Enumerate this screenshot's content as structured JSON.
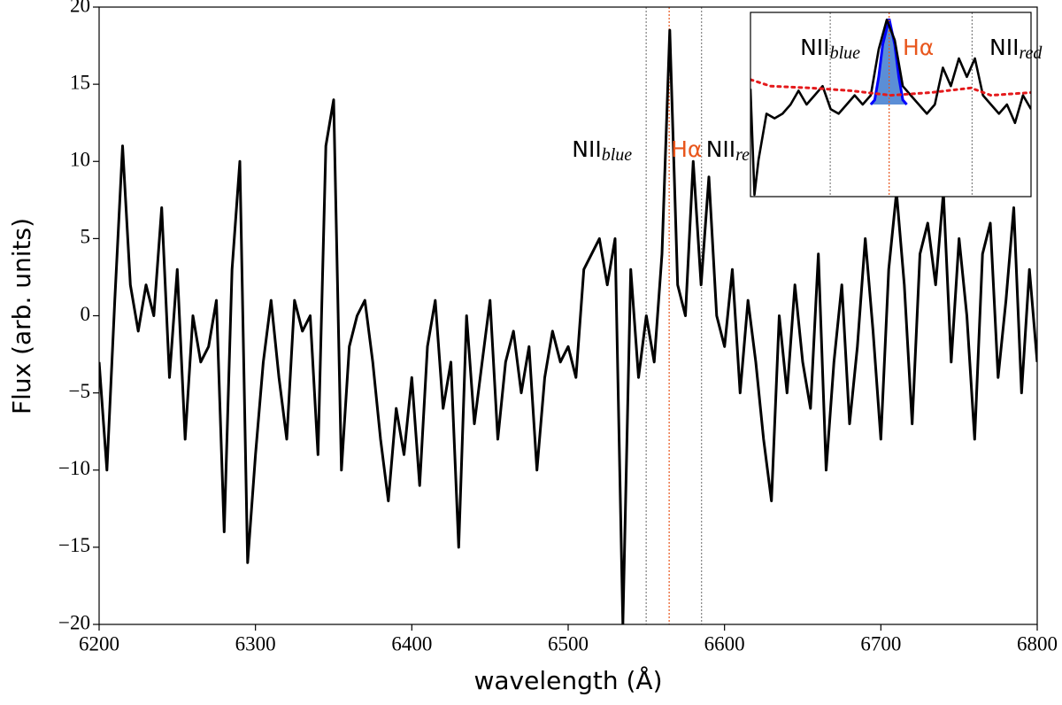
{
  "chart_data": {
    "type": "line",
    "xlabel": "wavelength (Å)",
    "ylabel": "Flux (arb. units)",
    "xlim": [
      6200,
      6800
    ],
    "xticks": [
      6200,
      6300,
      6400,
      6500,
      6600,
      6700,
      6800
    ],
    "ylim": [
      -20,
      20
    ],
    "yticks": [
      {
        "value": -20,
        "label": "−20"
      },
      {
        "value": -15,
        "label": "−15"
      },
      {
        "value": -10,
        "label": "−10"
      },
      {
        "value": -5,
        "label": "−5"
      },
      0,
      5,
      10,
      15,
      20
    ],
    "x": [
      6200,
      6205,
      6210,
      6215,
      6220,
      6225,
      6230,
      6235,
      6240,
      6245,
      6250,
      6255,
      6260,
      6265,
      6270,
      6275,
      6280,
      6285,
      6290,
      6295,
      6300,
      6305,
      6310,
      6315,
      6320,
      6325,
      6330,
      6335,
      6340,
      6345,
      6350,
      6355,
      6360,
      6365,
      6370,
      6375,
      6380,
      6385,
      6390,
      6395,
      6400,
      6405,
      6410,
      6415,
      6420,
      6425,
      6430,
      6435,
      6440,
      6445,
      6450,
      6455,
      6460,
      6465,
      6470,
      6475,
      6480,
      6485,
      6490,
      6495,
      6500,
      6505,
      6510,
      6515,
      6520,
      6525,
      6530,
      6535,
      6540,
      6545,
      6550,
      6555,
      6560,
      6565,
      6570,
      6575,
      6580,
      6585,
      6590,
      6595,
      6600,
      6605,
      6610,
      6615,
      6620,
      6625,
      6630,
      6635,
      6640,
      6645,
      6650,
      6655,
      6660,
      6665,
      6670,
      6675,
      6680,
      6685,
      6690,
      6695,
      6700,
      6705,
      6710,
      6715,
      6720,
      6725,
      6730,
      6735,
      6740,
      6745,
      6750,
      6755,
      6760,
      6765,
      6770,
      6775,
      6780,
      6785,
      6790,
      6795,
      6800
    ],
    "series": [
      {
        "name": "spectrum",
        "color": "#000000",
        "values": [
          -3,
          -10,
          1,
          11,
          2,
          -1,
          2,
          0,
          7,
          -4,
          3,
          -8,
          0,
          -3,
          -2,
          1,
          -14,
          3,
          10,
          -16,
          -9,
          -3,
          1,
          -4,
          -8,
          1,
          -1,
          0,
          -9,
          11,
          14,
          -10,
          -2,
          0,
          1,
          -3,
          -8,
          -12,
          -6,
          -9,
          -4,
          -11,
          -2,
          1,
          -6,
          -3,
          -15,
          0,
          -7,
          -3,
          1,
          -8,
          -3,
          -1,
          -5,
          -2,
          -10,
          -4,
          -1,
          -3,
          -2,
          -4,
          3,
          4,
          5,
          2,
          5,
          -20,
          3,
          -4,
          0,
          -3,
          4,
          18.5,
          2,
          0,
          10,
          2,
          9,
          0,
          -2,
          3,
          -5,
          1,
          -3,
          -8,
          -12,
          0,
          -5,
          2,
          -3,
          -6,
          4,
          -10,
          -3,
          2,
          -7,
          -2,
          5,
          -1,
          -8,
          3,
          8,
          2,
          -7,
          4,
          6,
          2,
          8,
          -3,
          5,
          0,
          -8,
          4,
          6,
          -4,
          1,
          7,
          -5,
          3,
          -3
        ]
      }
    ],
    "lines": [
      {
        "x": 6549.9,
        "color": "#808080",
        "label": "NII",
        "sub": "blue"
      },
      {
        "x": 6564.6,
        "color": "#e8561c",
        "label": "Hα"
      },
      {
        "x": 6585.3,
        "color": "#808080",
        "label": "NII",
        "sub": "red"
      }
    ],
    "inset": {
      "xlim": [
        6530,
        6600
      ],
      "ylim": [
        0,
        20
      ],
      "x": [
        6530,
        6531,
        6532,
        6534,
        6536,
        6538,
        6540,
        6542,
        6544,
        6546,
        6548,
        6550,
        6552,
        6554,
        6556,
        6558,
        6560,
        6562,
        6564,
        6566,
        6568,
        6570,
        6572,
        6574,
        6576,
        6578,
        6580,
        6582,
        6584,
        6586,
        6588,
        6590,
        6592,
        6594,
        6596,
        6598,
        6600
      ],
      "values": [
        11.7,
        0.2,
        4,
        9,
        8.5,
        9,
        10,
        11.5,
        10,
        11,
        12,
        9.5,
        9,
        10,
        11,
        10,
        11,
        16,
        19.2,
        17,
        12,
        11,
        10,
        9,
        10,
        14,
        12,
        15,
        13,
        15,
        11,
        10,
        9,
        10,
        8,
        11,
        9.5
      ],
      "continuum": {
        "color": "#e41a1c",
        "x": [
          6530,
          6535,
          6545,
          6555,
          6565,
          6575,
          6585,
          6590,
          6600
        ],
        "values": [
          12.7,
          12,
          11.8,
          11.5,
          11,
          11.3,
          11.8,
          11,
          11.3
        ]
      },
      "fit": {
        "color": "#0000ff",
        "fill": "#5b8ed6",
        "base": 10,
        "x": [
          6560,
          6561,
          6562,
          6563,
          6564.6,
          6566,
          6567,
          6568,
          6569
        ],
        "values": [
          10,
          10.5,
          13,
          16.5,
          19.3,
          16.5,
          13,
          10.5,
          10
        ]
      }
    }
  }
}
